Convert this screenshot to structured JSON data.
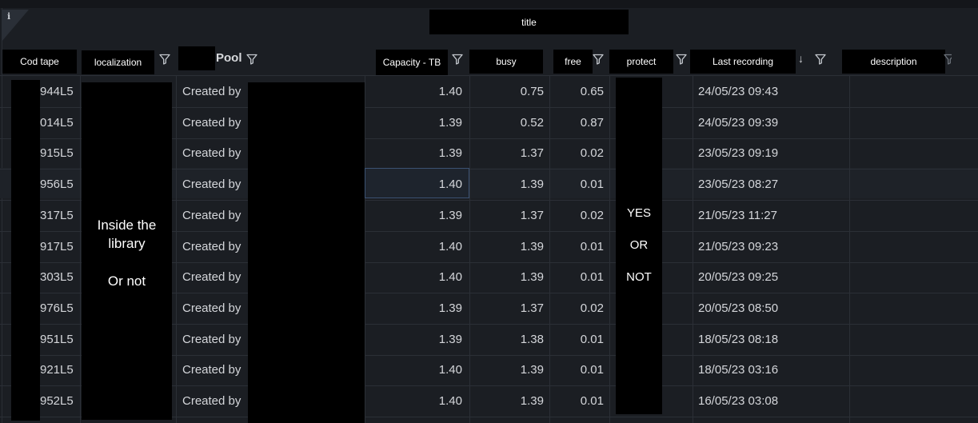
{
  "title": "title",
  "info_glyph": "i",
  "columns": {
    "cod_tape": "Cod tape",
    "localization": "localization",
    "pool": "Pool",
    "capacity": "Capacity - TB",
    "busy": "busy",
    "free": "free",
    "protect": "protect",
    "last_recording": "Last recording",
    "description": "description"
  },
  "localization_note": [
    "Inside the",
    "library",
    "Or not"
  ],
  "protect_note": [
    "YES",
    "OR",
    "NOT"
  ],
  "pool_prefix": "Created by",
  "sort_indicator": "↓",
  "rows": [
    {
      "cod": "944L5",
      "capacity": "1.40",
      "busy": "0.75",
      "free": "0.65",
      "last": "24/05/23 09:43"
    },
    {
      "cod": "014L5",
      "capacity": "1.39",
      "busy": "0.52",
      "free": "0.87",
      "last": "24/05/23 09:39"
    },
    {
      "cod": "915L5",
      "capacity": "1.39",
      "busy": "1.37",
      "free": "0.02",
      "last": "23/05/23 09:19"
    },
    {
      "cod": "956L5",
      "capacity": "1.40",
      "busy": "1.39",
      "free": "0.01",
      "last": "23/05/23 08:27"
    },
    {
      "cod": "317L5",
      "capacity": "1.39",
      "busy": "1.37",
      "free": "0.02",
      "last": "21/05/23 11:27"
    },
    {
      "cod": "917L5",
      "capacity": "1.40",
      "busy": "1.39",
      "free": "0.01",
      "last": "21/05/23 09:23"
    },
    {
      "cod": "303L5",
      "capacity": "1.40",
      "busy": "1.39",
      "free": "0.01",
      "last": "20/05/23 09:25"
    },
    {
      "cod": "976L5",
      "capacity": "1.39",
      "busy": "1.37",
      "free": "0.02",
      "last": "20/05/23 08:50"
    },
    {
      "cod": "951L5",
      "capacity": "1.39",
      "busy": "1.38",
      "free": "0.01",
      "last": "18/05/23 08:18"
    },
    {
      "cod": "921L5",
      "capacity": "1.40",
      "busy": "1.39",
      "free": "0.01",
      "last": "18/05/23 03:16"
    },
    {
      "cod": "952L5",
      "capacity": "1.40",
      "busy": "1.39",
      "free": "0.01",
      "last": "16/05/23 03:08"
    }
  ]
}
